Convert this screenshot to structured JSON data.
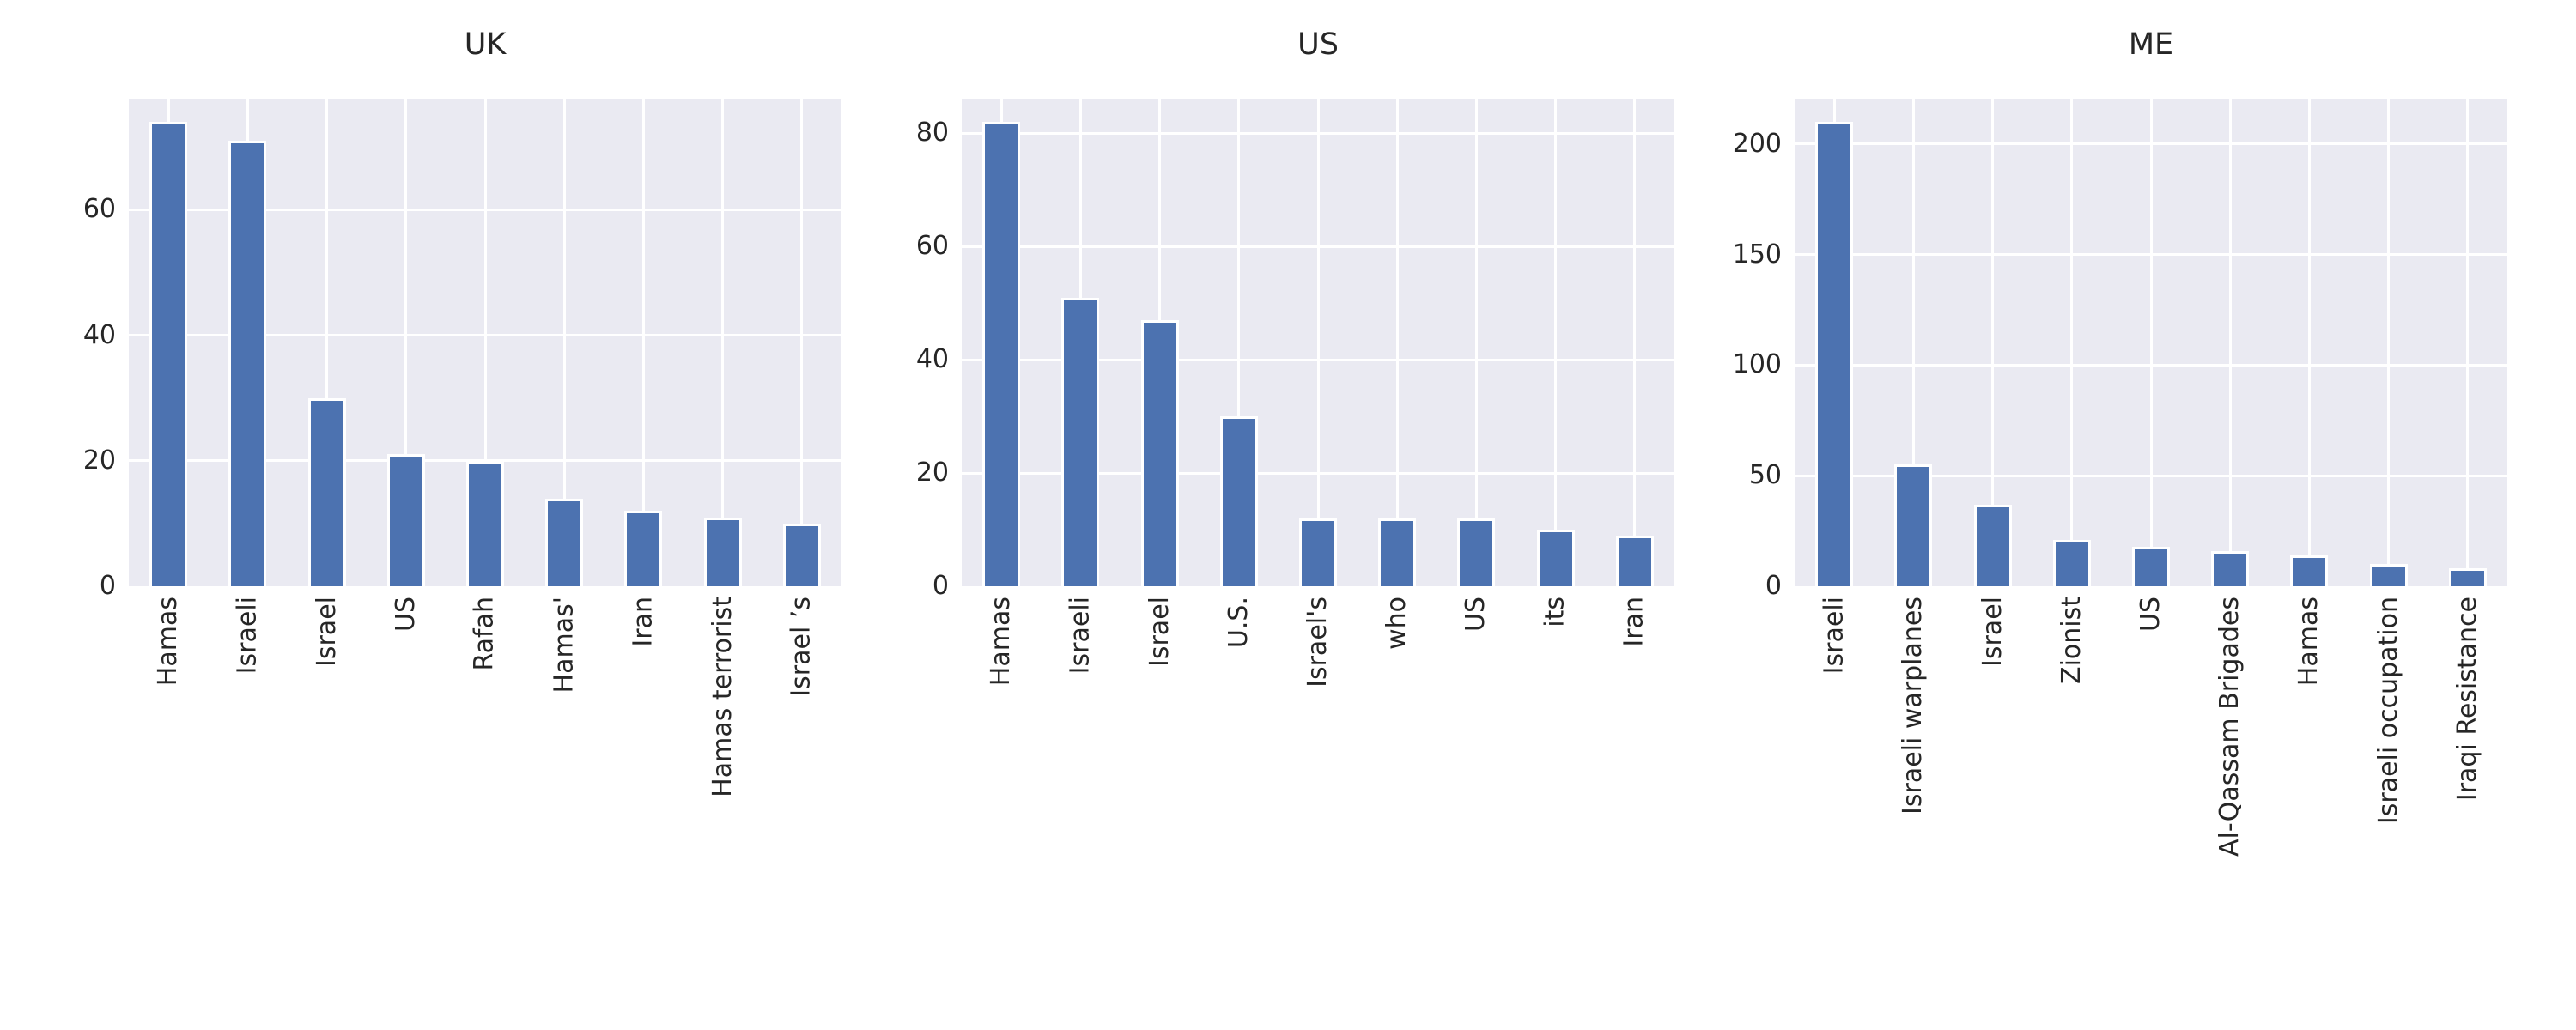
{
  "colors": {
    "bar_fill": "#4c72b0",
    "bar_edge": "#ffffff",
    "plot_background": "#eaeaf2",
    "gridline": "#ffffff",
    "text": "#262626",
    "figure_background": "#ffffff"
  },
  "chart_data": [
    {
      "type": "bar",
      "title": "UK",
      "categories": [
        "Hamas",
        "Israeli",
        "Israel",
        "US",
        "Rafah",
        "Hamas'",
        "Iran",
        "Hamas terrorist",
        "Israel ’s"
      ],
      "values": [
        74,
        71,
        30,
        21,
        20,
        14,
        12,
        11,
        10
      ],
      "xlabel": "",
      "ylabel": "",
      "yticks": [
        0,
        20,
        40,
        60
      ],
      "ylim": [
        0,
        77.7
      ],
      "grid": true,
      "legend_position": "none"
    },
    {
      "type": "bar",
      "title": "US",
      "categories": [
        "Hamas",
        "Israeli",
        "Israel",
        "U.S.",
        "Israel's",
        "who",
        "US",
        "its",
        "Iran"
      ],
      "values": [
        82,
        51,
        47,
        30,
        12,
        12,
        12,
        10,
        9
      ],
      "xlabel": "",
      "ylabel": "",
      "yticks": [
        0,
        20,
        40,
        60,
        80
      ],
      "ylim": [
        0,
        86.1
      ],
      "grid": true,
      "legend_position": "none"
    },
    {
      "type": "bar",
      "title": "ME",
      "categories": [
        "Israeli",
        "Israeli warplanes",
        "Israel",
        "Zionist",
        "US",
        "Al-Qassam Brigades",
        "Hamas",
        "Israeli occupation",
        "Iraqi Resistance"
      ],
      "values": [
        210,
        55,
        37,
        21,
        18,
        16,
        14,
        10,
        8
      ],
      "xlabel": "",
      "ylabel": "",
      "yticks": [
        0,
        50,
        100,
        150,
        200
      ],
      "ylim": [
        0,
        220.5
      ],
      "grid": true,
      "legend_position": "none"
    }
  ]
}
